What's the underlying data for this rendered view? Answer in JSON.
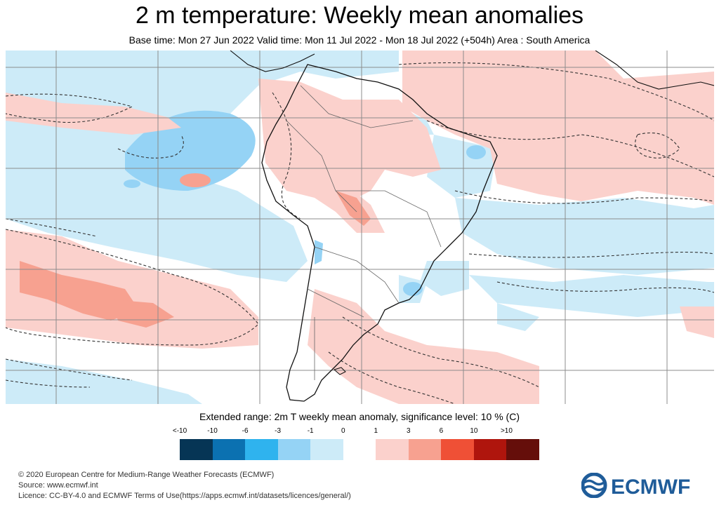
{
  "title": "2 m temperature: Weekly mean anomalies",
  "subtitle": "Base time: Mon 27 Jun 2022 Valid time: Mon 11 Jul 2022 - Mon 18 Jul 2022 (+504h) Area : South America",
  "legend": {
    "title": "Extended range: 2m T weekly mean anomaly, significance level: 10 % (C)",
    "labels": [
      "<-10",
      "-10",
      "-6",
      "-3",
      "-1",
      "0",
      "1",
      "3",
      "6",
      "10",
      ">10"
    ],
    "colors": [
      "#063555",
      "#0b71b1",
      "#2fb3ee",
      "#95d3f5",
      "#cdebf8",
      "#ffffff",
      "#fbd1cc",
      "#f7a190",
      "#ef5036",
      "#af150d",
      "#650e0a"
    ]
  },
  "map": {
    "ocean_color": "#ffffff",
    "land_outline_color": "#111111",
    "grid_color": "#8c8c8c",
    "contour_style": "dashed"
  },
  "footer": {
    "copyright": "© 2020 European Centre for Medium-Range Weather Forecasts (ECMWF)",
    "source": "Source: www.ecmwf.int",
    "licence": "Licence: CC-BY-4.0 and ECMWF Terms of Use(https://apps.ecmwf.int/datasets/licences/general/)"
  },
  "logo": {
    "text": "ECMWF",
    "color": "#1f5c99"
  }
}
